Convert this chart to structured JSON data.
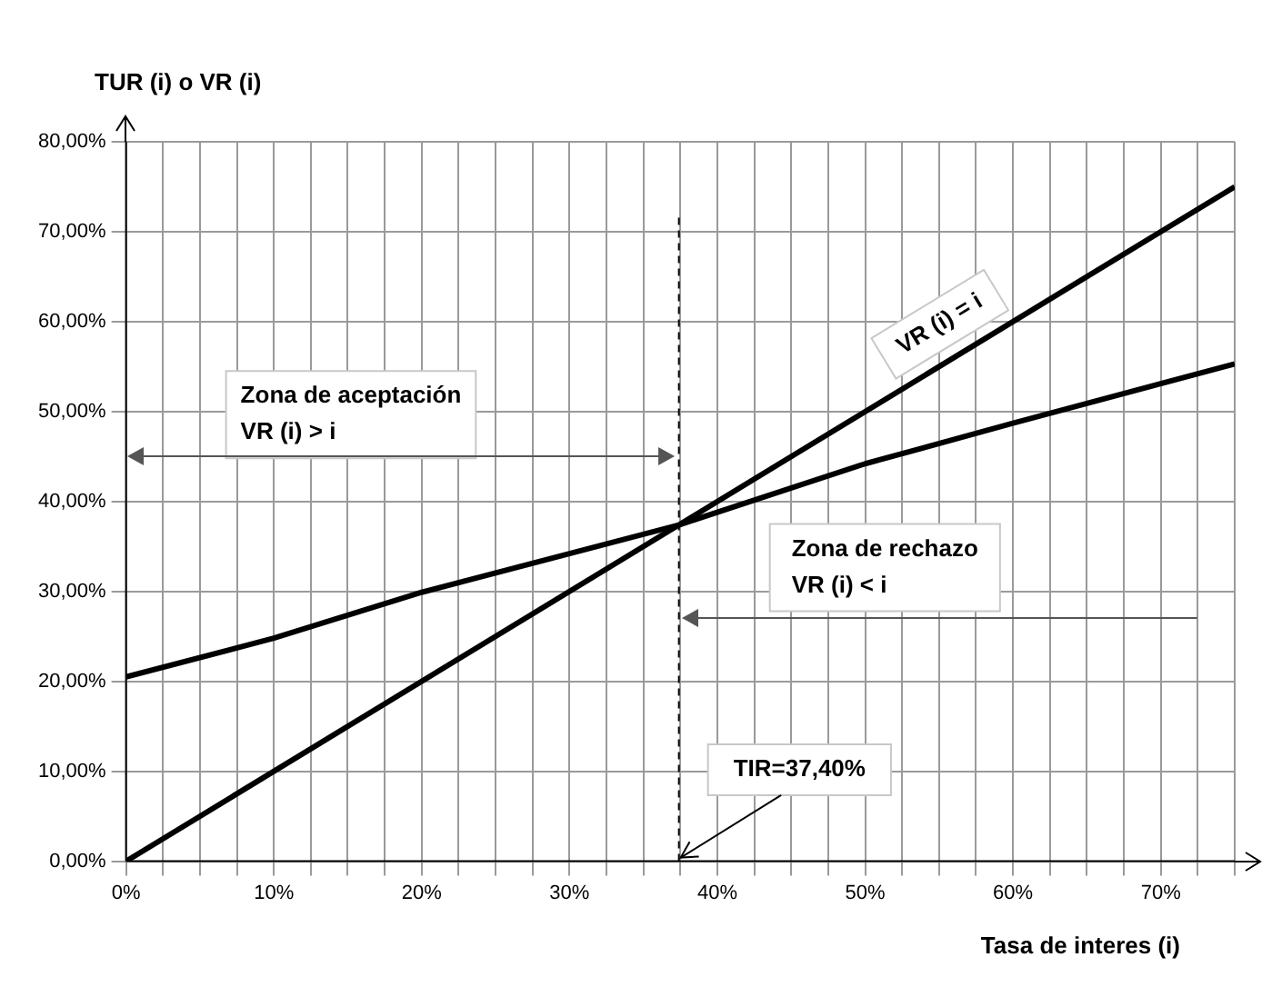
{
  "chart_data": {
    "type": "line",
    "xlabel": "Tasa de interes (i)",
    "ylabel": "TUR (i) o VR (i)",
    "series": [
      {
        "name": "VR (i) = i",
        "color": "#000000",
        "x": [
          0,
          75
        ],
        "values": [
          0,
          75
        ]
      },
      {
        "color": "#000000",
        "x": [
          0,
          10,
          20,
          37.4,
          50,
          60,
          75
        ],
        "values": [
          20.5,
          24.8,
          29.9,
          37.4,
          44.2,
          48.7,
          55.3
        ]
      }
    ],
    "xlim": [
      0,
      75
    ],
    "xticks": [
      {
        "value": 0,
        "label": "0%"
      },
      {
        "value": 2.5,
        "label": null
      },
      {
        "value": 5,
        "label": null
      },
      {
        "value": 7.5,
        "label": null
      },
      {
        "value": 10,
        "label": "10%"
      },
      {
        "value": 12.5,
        "label": null
      },
      {
        "value": 15,
        "label": null
      },
      {
        "value": 17.5,
        "label": null
      },
      {
        "value": 20,
        "label": "20%"
      },
      {
        "value": 22.5,
        "label": null
      },
      {
        "value": 25,
        "label": null
      },
      {
        "value": 27.5,
        "label": null
      },
      {
        "value": 30,
        "label": "30%"
      },
      {
        "value": 32.5,
        "label": null
      },
      {
        "value": 35,
        "label": null
      },
      {
        "value": 37.5,
        "label": null
      },
      {
        "value": 40,
        "label": "40%"
      },
      {
        "value": 42.5,
        "label": null
      },
      {
        "value": 45,
        "label": null
      },
      {
        "value": 47.5,
        "label": null
      },
      {
        "value": 50,
        "label": "50%"
      },
      {
        "value": 52.5,
        "label": null
      },
      {
        "value": 55,
        "label": null
      },
      {
        "value": 57.5,
        "label": null
      },
      {
        "value": 60,
        "label": "60%"
      },
      {
        "value": 62.5,
        "label": null
      },
      {
        "value": 65,
        "label": null
      },
      {
        "value": 67.5,
        "label": null
      },
      {
        "value": 70,
        "label": "70%"
      },
      {
        "value": 72.5,
        "label": null
      },
      {
        "value": 75,
        "label": null
      }
    ],
    "ylim": [
      0,
      80
    ],
    "yticks": [
      {
        "value": 0,
        "label": "0,00%"
      },
      {
        "value": 10,
        "label": "10,00%"
      },
      {
        "value": 20,
        "label": "20,00%"
      },
      {
        "value": 30,
        "label": "30,00%"
      },
      {
        "value": 40,
        "label": "40,00%"
      },
      {
        "value": 50,
        "label": "50,00%"
      },
      {
        "value": 60,
        "label": "60,00%"
      },
      {
        "value": 70,
        "label": "70,00%"
      },
      {
        "value": 80,
        "label": "80,00%"
      }
    ],
    "grid": true,
    "legend": false,
    "marker": "none",
    "line_style": "solid",
    "ref_lines": [
      {
        "axis": "x",
        "value": 37.4,
        "label": "TIR=37,40%",
        "color": "#000000",
        "line_style": "dashed"
      }
    ],
    "annotations": [
      "Zona de aceptación\nVR (i) > i",
      "Zona de rechazo\nVR (i) < i"
    ]
  }
}
